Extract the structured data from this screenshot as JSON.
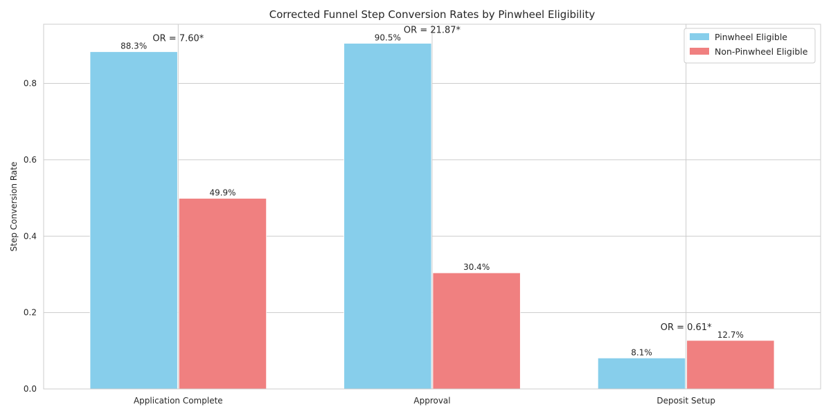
{
  "chart_data": {
    "type": "bar",
    "title": "Corrected Funnel Step Conversion Rates by Pinwheel Eligibility",
    "xlabel": "",
    "ylabel": "Step Conversion Rate",
    "categories": [
      "Application Complete",
      "Approval",
      "Deposit Setup"
    ],
    "series": [
      {
        "name": "Pinwheel Eligible",
        "color": "#87ceeb",
        "values": [
          0.883,
          0.905,
          0.081
        ],
        "labels": [
          "88.3%",
          "90.5%",
          "8.1%"
        ]
      },
      {
        "name": "Non-Pinwheel Eligible",
        "color": "#f08080",
        "values": [
          0.499,
          0.304,
          0.127
        ],
        "labels": [
          "49.9%",
          "30.4%",
          "12.7%"
        ]
      }
    ],
    "annotations": [
      "OR = 7.60*",
      "OR = 21.87*",
      "OR = 0.61*"
    ],
    "ylim": [
      0,
      0.955
    ],
    "yticks": [
      0.0,
      0.2,
      0.4,
      0.6,
      0.8
    ],
    "ytick_labels": [
      "0.0",
      "0.2",
      "0.4",
      "0.6",
      "0.8"
    ],
    "grid": true,
    "legend_position": "top-right"
  }
}
